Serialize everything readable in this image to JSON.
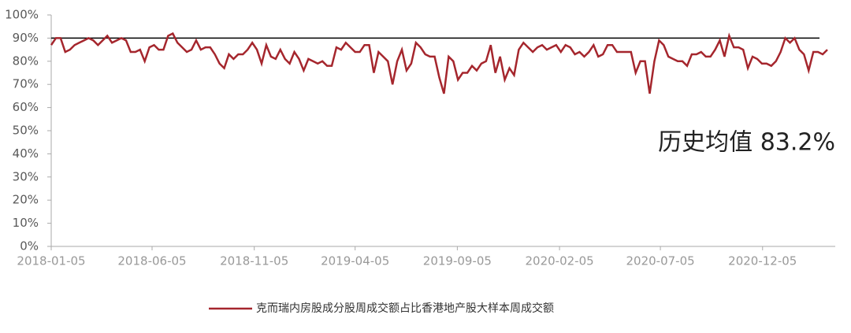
{
  "chart_data": {
    "type": "line",
    "annotation": "历史均值 83.2%",
    "reference_line": 90,
    "x": [
      "2018-01-05",
      "2018-01-12",
      "2018-01-19",
      "2018-01-26",
      "2018-02-02",
      "2018-02-09",
      "2018-02-16",
      "2018-02-23",
      "2018-03-02",
      "2018-03-09",
      "2018-03-16",
      "2018-03-23",
      "2018-03-30",
      "2018-04-06",
      "2018-04-13",
      "2018-04-20",
      "2018-04-27",
      "2018-05-04",
      "2018-05-11",
      "2018-05-18",
      "2018-05-25",
      "2018-06-01",
      "2018-06-08",
      "2018-06-15",
      "2018-06-22",
      "2018-06-29",
      "2018-07-06",
      "2018-07-13",
      "2018-07-20",
      "2018-07-27",
      "2018-08-03",
      "2018-08-10",
      "2018-08-17",
      "2018-08-24",
      "2018-08-31",
      "2018-09-07",
      "2018-09-14",
      "2018-09-21",
      "2018-09-28",
      "2018-10-05",
      "2018-10-12",
      "2018-10-19",
      "2018-10-26",
      "2018-11-02",
      "2018-11-09",
      "2018-11-16",
      "2018-11-23",
      "2018-11-30",
      "2018-12-07",
      "2018-12-14",
      "2018-12-21",
      "2018-12-28",
      "2019-01-04",
      "2019-01-11",
      "2019-01-18",
      "2019-01-25",
      "2019-02-01",
      "2019-02-08",
      "2019-02-15",
      "2019-02-22",
      "2019-03-01",
      "2019-03-08",
      "2019-03-15",
      "2019-03-22",
      "2019-03-29",
      "2019-04-05",
      "2019-04-12",
      "2019-04-19",
      "2019-04-26",
      "2019-05-03",
      "2019-05-10",
      "2019-05-17",
      "2019-05-24",
      "2019-05-31",
      "2019-06-07",
      "2019-06-14",
      "2019-06-21",
      "2019-06-28",
      "2019-07-05",
      "2019-07-12",
      "2019-07-19",
      "2019-07-26",
      "2019-08-02",
      "2019-08-09",
      "2019-08-16",
      "2019-08-23",
      "2019-08-30",
      "2019-09-06",
      "2019-09-13",
      "2019-09-20",
      "2019-09-27",
      "2019-10-04",
      "2019-10-11",
      "2019-10-18",
      "2019-10-25",
      "2019-11-01",
      "2019-11-08",
      "2019-11-15",
      "2019-11-22",
      "2019-11-29",
      "2019-12-06",
      "2019-12-13",
      "2019-12-20",
      "2019-12-27",
      "2020-01-03",
      "2020-01-10",
      "2020-01-17",
      "2020-01-24",
      "2020-01-31",
      "2020-02-07",
      "2020-02-14",
      "2020-02-21",
      "2020-02-28",
      "2020-03-06",
      "2020-03-13",
      "2020-03-20",
      "2020-03-27",
      "2020-04-03",
      "2020-04-10",
      "2020-04-17",
      "2020-04-24",
      "2020-05-01",
      "2020-05-08",
      "2020-05-15",
      "2020-05-22",
      "2020-05-29",
      "2020-06-05",
      "2020-06-12",
      "2020-06-19",
      "2020-06-26",
      "2020-07-03",
      "2020-07-10",
      "2020-07-17",
      "2020-07-24",
      "2020-07-31",
      "2020-08-07",
      "2020-08-14",
      "2020-08-21",
      "2020-08-28",
      "2020-09-04",
      "2020-09-11",
      "2020-09-18",
      "2020-09-25",
      "2020-10-02",
      "2020-10-09",
      "2020-10-16",
      "2020-10-23",
      "2020-10-30",
      "2020-11-06",
      "2020-11-13",
      "2020-11-20",
      "2020-11-27",
      "2020-12-04",
      "2020-12-11",
      "2020-12-18",
      "2020-12-25",
      "2021-01-01",
      "2021-01-08",
      "2021-01-15",
      "2021-01-22",
      "2021-01-29",
      "2021-02-05",
      "2021-02-12",
      "2021-02-19",
      "2021-02-26",
      "2021-03-05",
      "2021-03-12"
    ],
    "series": [
      {
        "name": "克而瑞内房股成分股周成交额占比香港地产股大样本周成交额",
        "color": "#a5262d",
        "values": [
          87,
          90,
          90,
          84,
          85,
          87,
          88,
          89,
          90,
          89,
          87,
          89,
          91,
          88,
          89,
          90,
          89,
          84,
          84,
          85,
          80,
          86,
          87,
          85,
          85,
          91,
          92,
          88,
          86,
          84,
          85,
          89,
          85,
          86,
          86,
          83,
          79,
          77,
          83,
          81,
          83,
          83,
          85,
          88,
          85,
          79,
          87,
          82,
          81,
          85,
          81,
          79,
          84,
          81,
          76,
          81,
          80,
          79,
          80,
          78,
          78,
          86,
          85,
          88,
          86,
          84,
          84,
          87,
          87,
          75,
          84,
          82,
          80,
          70,
          80,
          85,
          76,
          79,
          88,
          86,
          83,
          82,
          82,
          73,
          66,
          82,
          80,
          72,
          75,
          75,
          78,
          76,
          79,
          80,
          87,
          75,
          82,
          72,
          77,
          74,
          85,
          88,
          86,
          84,
          86,
          87,
          85,
          86,
          87,
          84,
          87,
          86,
          83,
          84,
          82,
          84,
          87,
          82,
          83,
          87,
          87,
          84,
          84,
          84,
          84,
          75,
          80,
          80,
          66,
          80,
          89,
          87,
          82,
          81,
          80,
          80,
          78,
          83,
          83,
          84,
          82,
          82,
          85,
          89,
          82,
          91,
          86,
          86,
          85,
          77,
          82,
          81,
          79,
          79,
          78,
          80,
          84,
          90,
          88,
          90,
          85,
          83,
          76,
          84,
          84,
          83,
          85
        ]
      }
    ],
    "xlim": [
      "2018-01-05",
      "2021-03-12"
    ],
    "xticks": [
      "2018-01-05",
      "2018-06-05",
      "2018-11-05",
      "2019-04-05",
      "2019-09-05",
      "2020-02-05",
      "2020-07-05",
      "2020-12-05"
    ],
    "ylim": [
      0,
      100
    ],
    "yticks": [
      {
        "value": 0,
        "label": "0%"
      },
      {
        "value": 10,
        "label": "10%"
      },
      {
        "value": 20,
        "label": "20%"
      },
      {
        "value": 30,
        "label": "30%"
      },
      {
        "value": 40,
        "label": "40%"
      },
      {
        "value": 50,
        "label": "50%"
      },
      {
        "value": 60,
        "label": "60%"
      },
      {
        "value": 70,
        "label": "70%"
      },
      {
        "value": 80,
        "label": "80%"
      },
      {
        "value": 90,
        "label": "90%"
      },
      {
        "value": 100,
        "label": "100%"
      }
    ],
    "legend": "bottom"
  }
}
